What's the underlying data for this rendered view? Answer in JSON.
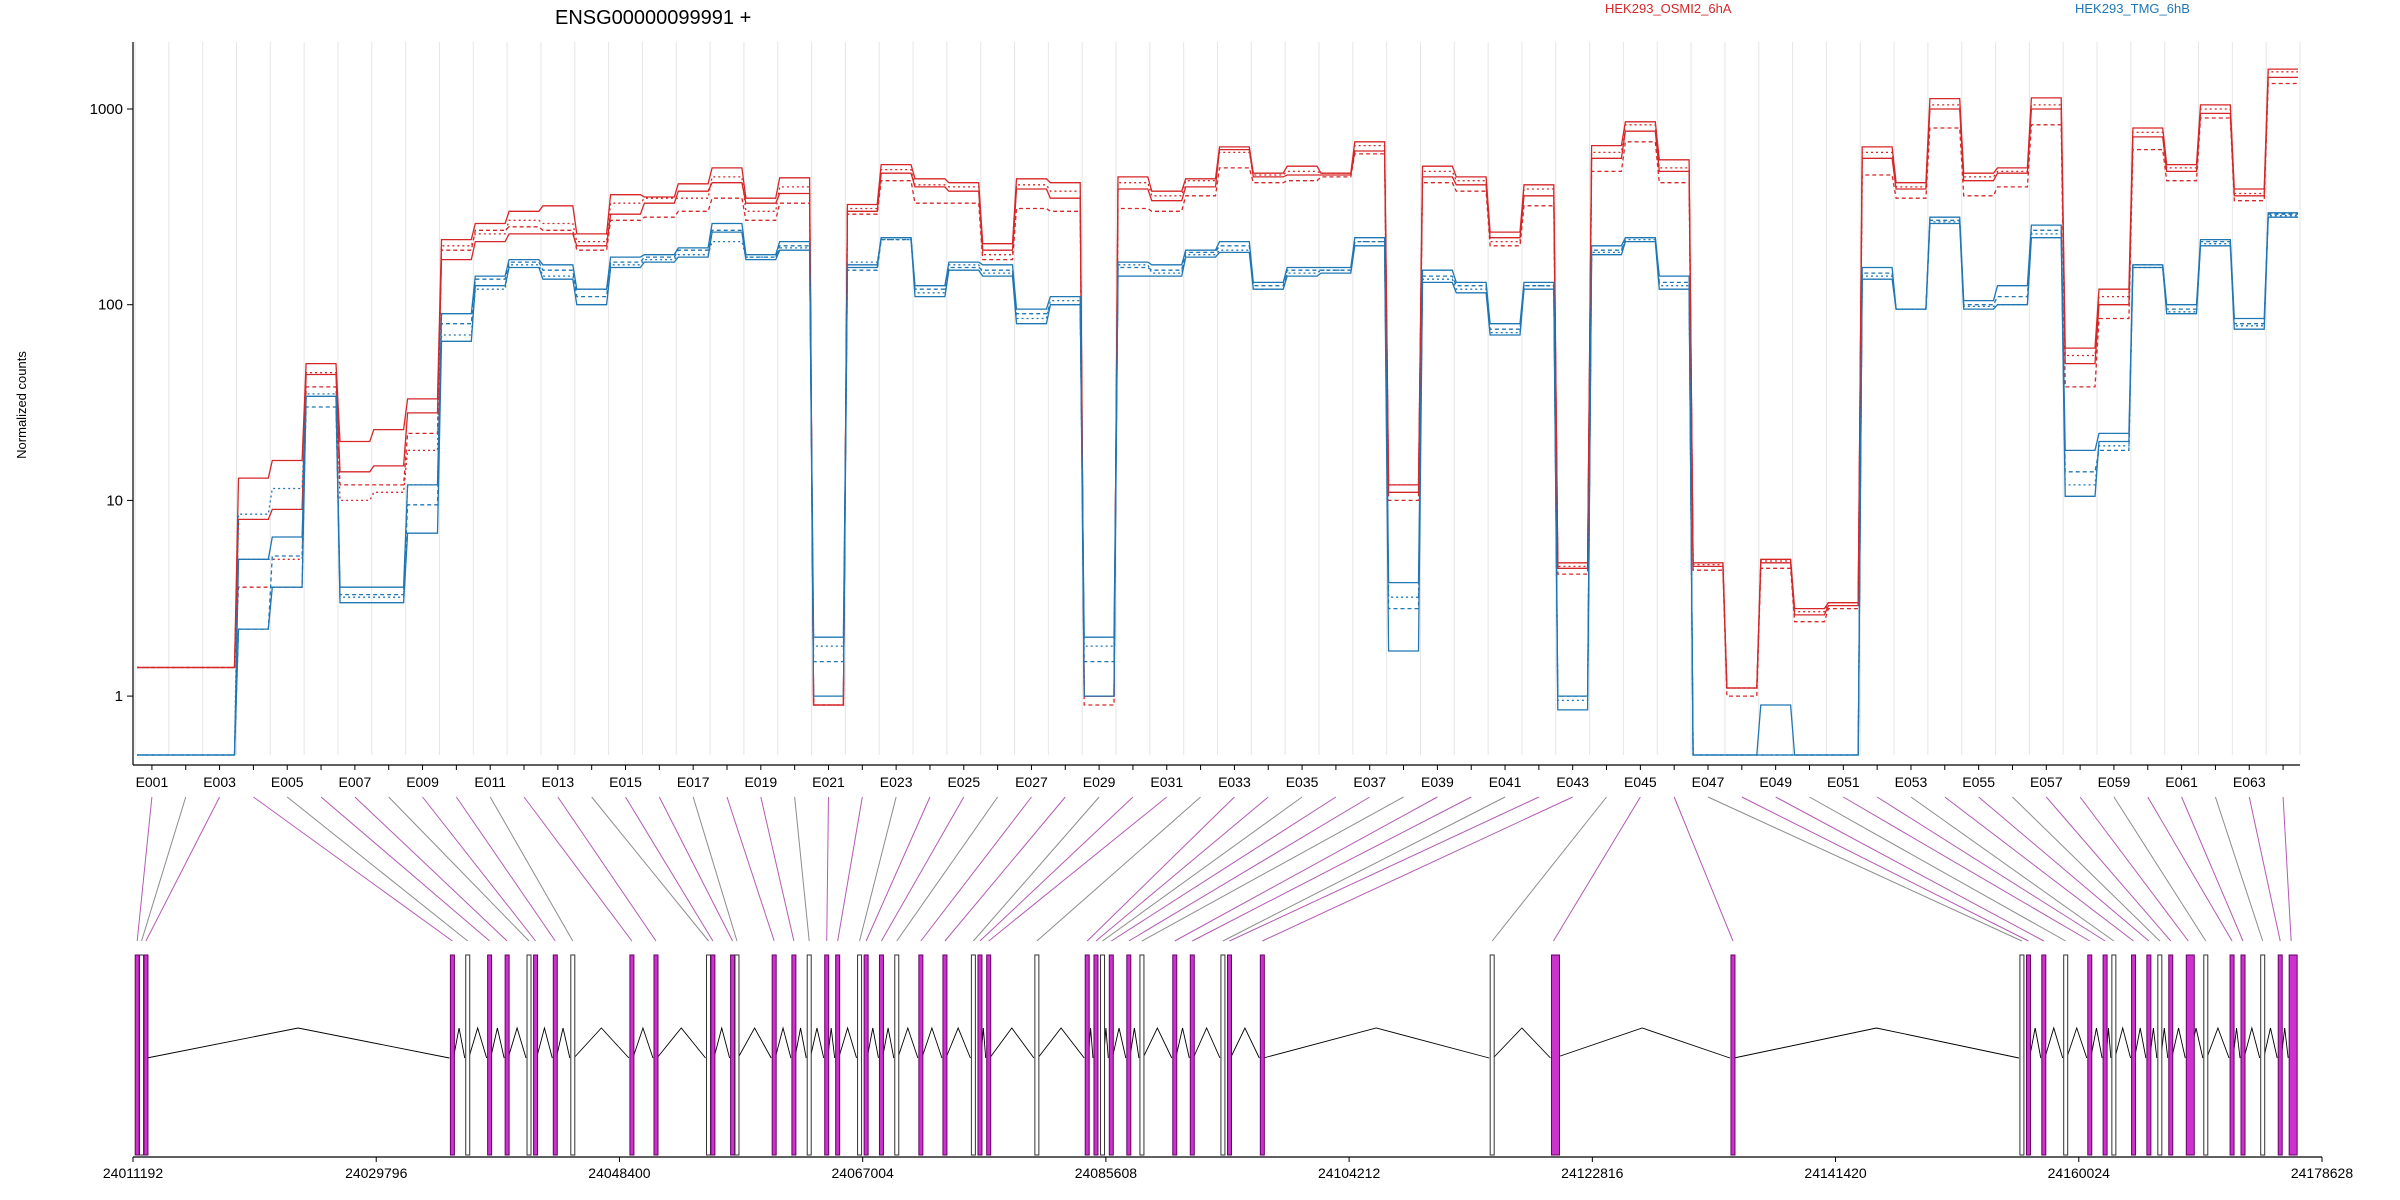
{
  "chart_data": {
    "type": "line",
    "title": "ENSG00000099991 +",
    "ylabel": "Normalized counts",
    "yscale": "log",
    "ylim": [
      0.5,
      2200
    ],
    "yticks": [
      1,
      10,
      100,
      1000
    ],
    "ytick_labels": [
      "1",
      "10",
      "100",
      "1000"
    ],
    "grid": true,
    "legend_position": "top",
    "exon_labels": [
      "E001",
      "E003",
      "E005",
      "E007",
      "E009",
      "E011",
      "E013",
      "E015",
      "E017",
      "E019",
      "E021",
      "E023",
      "E025",
      "E027",
      "E029",
      "E031",
      "E033",
      "E035",
      "E037",
      "E039",
      "E041",
      "E043",
      "E045",
      "E047",
      "E049",
      "E051",
      "E053",
      "E055",
      "E057",
      "E059",
      "E061",
      "E063"
    ],
    "series": [
      {
        "name": "HEK293_OSMI2_6hA",
        "color": "#d62728",
        "values": [
          1.4,
          1.4,
          1.4,
          13,
          16,
          50,
          20,
          23,
          33,
          215,
          260,
          300,
          320,
          230,
          365,
          355,
          415,
          500,
          350,
          445,
          0.9,
          325,
          520,
          440,
          420,
          205,
          440,
          420,
          1.0,
          450,
          380,
          440,
          640,
          470,
          510,
          470,
          680,
          12,
          510,
          450,
          235,
          410,
          4.8,
          650,
          860,
          550,
          4.8,
          1.1,
          5.0,
          2.8,
          3.0,
          640,
          420,
          1130,
          470,
          500,
          1140,
          60,
          120,
          800,
          520,
          1050,
          390,
          1600
        ]
      },
      {
        "name": "HEK293_OSMI2_6hA",
        "color": "#d62728",
        "values": [
          1.4,
          1.4,
          1.4,
          3.6,
          3.6,
          38,
          12,
          12,
          22,
          190,
          240,
          250,
          240,
          190,
          270,
          280,
          300,
          350,
          270,
          330,
          0.9,
          290,
          430,
          330,
          330,
          170,
          310,
          300,
          0.9,
          310,
          300,
          360,
          500,
          420,
          430,
          450,
          590,
          10,
          420,
          380,
          200,
          320,
          4.2,
          480,
          680,
          420,
          4.4,
          1.0,
          4.5,
          2.4,
          2.8,
          460,
          350,
          800,
          360,
          400,
          830,
          38,
          85,
          620,
          430,
          900,
          340,
          1350
        ]
      },
      {
        "name": "HEK293_OSMI2_6hA",
        "color": "#d62728",
        "values": [
          1.4,
          1.4,
          1.4,
          8.0,
          9.0,
          44,
          14,
          15,
          28,
          170,
          210,
          230,
          230,
          200,
          290,
          330,
          380,
          420,
          330,
          370,
          0.9,
          300,
          470,
          400,
          380,
          190,
          390,
          350,
          1.0,
          390,
          340,
          400,
          620,
          450,
          460,
          460,
          610,
          11,
          450,
          410,
          220,
          360,
          4.5,
          560,
          770,
          480,
          4.6,
          1.1,
          4.8,
          2.6,
          2.9,
          560,
          390,
          1000,
          430,
          470,
          1000,
          50,
          100,
          720,
          480,
          950,
          360,
          1450
        ]
      },
      {
        "name": "HEK293_OSMI2_6hA",
        "color": "#d62728",
        "values": [
          1.4,
          1.4,
          1.4,
          5.0,
          5.0,
          45,
          10,
          11,
          18,
          200,
          230,
          270,
          260,
          210,
          330,
          350,
          350,
          450,
          300,
          400,
          0.9,
          310,
          490,
          410,
          400,
          180,
          410,
          380,
          1.0,
          420,
          360,
          430,
          600,
          460,
          480,
          470,
          650,
          12,
          480,
          430,
          210,
          390,
          4.6,
          600,
          830,
          500,
          4.7,
          1.1,
          4.9,
          2.7,
          3.0,
          600,
          400,
          1050,
          450,
          480,
          1050,
          55,
          110,
          760,
          500,
          1000,
          370,
          1550
        ]
      },
      {
        "name": "HEK293_TMG_6hB",
        "color": "#1f77b4",
        "values": [
          0.5,
          0.5,
          0.5,
          2.2,
          3.6,
          34,
          3.0,
          3.0,
          6.8,
          65,
          125,
          155,
          135,
          100,
          155,
          165,
          175,
          235,
          170,
          190,
          2.0,
          155,
          220,
          110,
          150,
          140,
          80,
          100,
          2.0,
          140,
          140,
          175,
          185,
          120,
          140,
          145,
          200,
          1.7,
          130,
          115,
          70,
          120,
          0.85,
          180,
          210,
          120,
          0.5,
          0.5,
          0.9,
          0.5,
          0.5,
          135,
          95,
          260,
          95,
          100,
          220,
          10.5,
          20,
          155,
          90,
          200,
          75,
          280
        ]
      },
      {
        "name": "HEK293_TMG_6hB",
        "color": "#1f77b4",
        "values": [
          0.5,
          0.5,
          0.5,
          2.2,
          5.2,
          30,
          3.3,
          3.3,
          9.5,
          80,
          135,
          165,
          150,
          110,
          165,
          175,
          190,
          240,
          175,
          200,
          1.5,
          150,
          215,
          120,
          155,
          150,
          90,
          100,
          1.5,
          155,
          150,
          185,
          200,
          125,
          150,
          150,
          210,
          2.8,
          140,
          125,
          75,
          125,
          1.0,
          190,
          220,
          130,
          0.5,
          0.5,
          0.5,
          0.5,
          0.5,
          145,
          95,
          270,
          100,
          110,
          240,
          14,
          18,
          160,
          95,
          210,
          80,
          290
        ]
      },
      {
        "name": "HEK293_TMG_6hB",
        "color": "#1f77b4",
        "values": [
          0.5,
          0.5,
          0.5,
          5.0,
          6.5,
          34,
          3.6,
          3.6,
          12,
          90,
          140,
          170,
          160,
          120,
          175,
          180,
          195,
          260,
          180,
          210,
          1.0,
          160,
          220,
          125,
          165,
          160,
          95,
          110,
          1.0,
          165,
          160,
          190,
          210,
          130,
          155,
          155,
          220,
          3.8,
          150,
          130,
          80,
          130,
          1.0,
          200,
          220,
          140,
          0.5,
          0.5,
          0.5,
          0.5,
          0.5,
          155,
          95,
          280,
          105,
          125,
          255,
          18,
          22,
          160,
          100,
          215,
          85,
          295
        ]
      },
      {
        "name": "HEK293_TMG_6hB",
        "color": "#1f77b4",
        "values": [
          0.5,
          0.5,
          0.5,
          8.5,
          11.5,
          35,
          3.2,
          3.2,
          12,
          70,
          120,
          160,
          140,
          120,
          160,
          170,
          180,
          210,
          175,
          195,
          1.8,
          165,
          215,
          115,
          160,
          145,
          85,
          105,
          1.8,
          160,
          145,
          180,
          190,
          120,
          145,
          150,
          210,
          3.2,
          135,
          120,
          72,
          125,
          0.95,
          185,
          215,
          125,
          0.5,
          0.5,
          0.5,
          0.5,
          0.5,
          140,
          95,
          265,
          98,
          100,
          230,
          12,
          19,
          155,
          92,
          205,
          78,
          285
        ]
      }
    ],
    "genome_ticks": [
      "24011192",
      "24029796",
      "24048400",
      "24067004",
      "24085608",
      "24104212",
      "24122816",
      "24141420",
      "24160024",
      "24178628"
    ]
  }
}
